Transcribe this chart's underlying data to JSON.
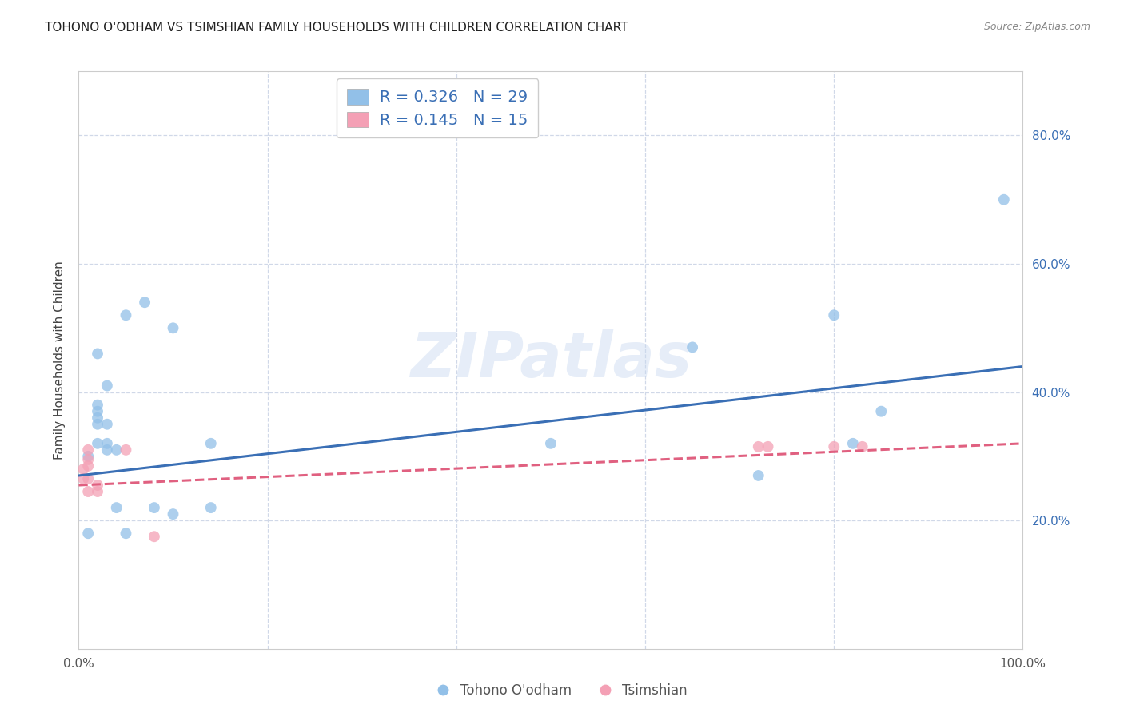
{
  "title": "TOHONO O'ODHAM VS TSIMSHIAN FAMILY HOUSEHOLDS WITH CHILDREN CORRELATION CHART",
  "source": "Source: ZipAtlas.com",
  "ylabel": "Family Households with Children",
  "xlim": [
    0,
    1
  ],
  "ylim": [
    0,
    0.9
  ],
  "xticks": [
    0.0,
    0.2,
    0.4,
    0.6,
    0.8,
    1.0
  ],
  "yticks": [
    0.2,
    0.4,
    0.6,
    0.8
  ],
  "xtick_labels": [
    "0.0%",
    "",
    "",
    "",
    "",
    "100.0%"
  ],
  "ytick_labels": [
    "20.0%",
    "40.0%",
    "60.0%",
    "80.0%"
  ],
  "watermark": "ZIPatlas",
  "blue_scatter_x": [
    0.01,
    0.01,
    0.02,
    0.02,
    0.02,
    0.02,
    0.02,
    0.02,
    0.03,
    0.03,
    0.03,
    0.03,
    0.04,
    0.04,
    0.05,
    0.05,
    0.07,
    0.08,
    0.1,
    0.1,
    0.14,
    0.14,
    0.5,
    0.65,
    0.72,
    0.8,
    0.82,
    0.85,
    0.98
  ],
  "blue_scatter_y": [
    0.18,
    0.3,
    0.32,
    0.35,
    0.36,
    0.37,
    0.38,
    0.46,
    0.31,
    0.32,
    0.35,
    0.41,
    0.22,
    0.31,
    0.18,
    0.52,
    0.54,
    0.22,
    0.21,
    0.5,
    0.22,
    0.32,
    0.32,
    0.47,
    0.27,
    0.52,
    0.32,
    0.37,
    0.7
  ],
  "pink_scatter_x": [
    0.005,
    0.005,
    0.01,
    0.01,
    0.01,
    0.01,
    0.01,
    0.02,
    0.02,
    0.05,
    0.08,
    0.72,
    0.73,
    0.8,
    0.83
  ],
  "pink_scatter_y": [
    0.265,
    0.28,
    0.245,
    0.265,
    0.285,
    0.295,
    0.31,
    0.245,
    0.255,
    0.31,
    0.175,
    0.315,
    0.315,
    0.315,
    0.315
  ],
  "blue_line_x": [
    0.0,
    1.0
  ],
  "blue_line_y": [
    0.27,
    0.44
  ],
  "pink_line_x": [
    0.0,
    1.0
  ],
  "pink_line_y": [
    0.255,
    0.32
  ],
  "blue_color": "#92c0e8",
  "blue_line_color": "#3a6fb5",
  "pink_color": "#f4a0b5",
  "pink_line_color": "#e06080",
  "legend_R_blue": "R = 0.326",
  "legend_N_blue": "N = 29",
  "legend_R_pink": "R = 0.145",
  "legend_N_pink": "N = 15",
  "grid_color": "#d0d8e8",
  "background_color": "#ffffff",
  "title_fontsize": 11,
  "axis_fontsize": 11,
  "tick_fontsize": 11,
  "scatter_size": 100
}
